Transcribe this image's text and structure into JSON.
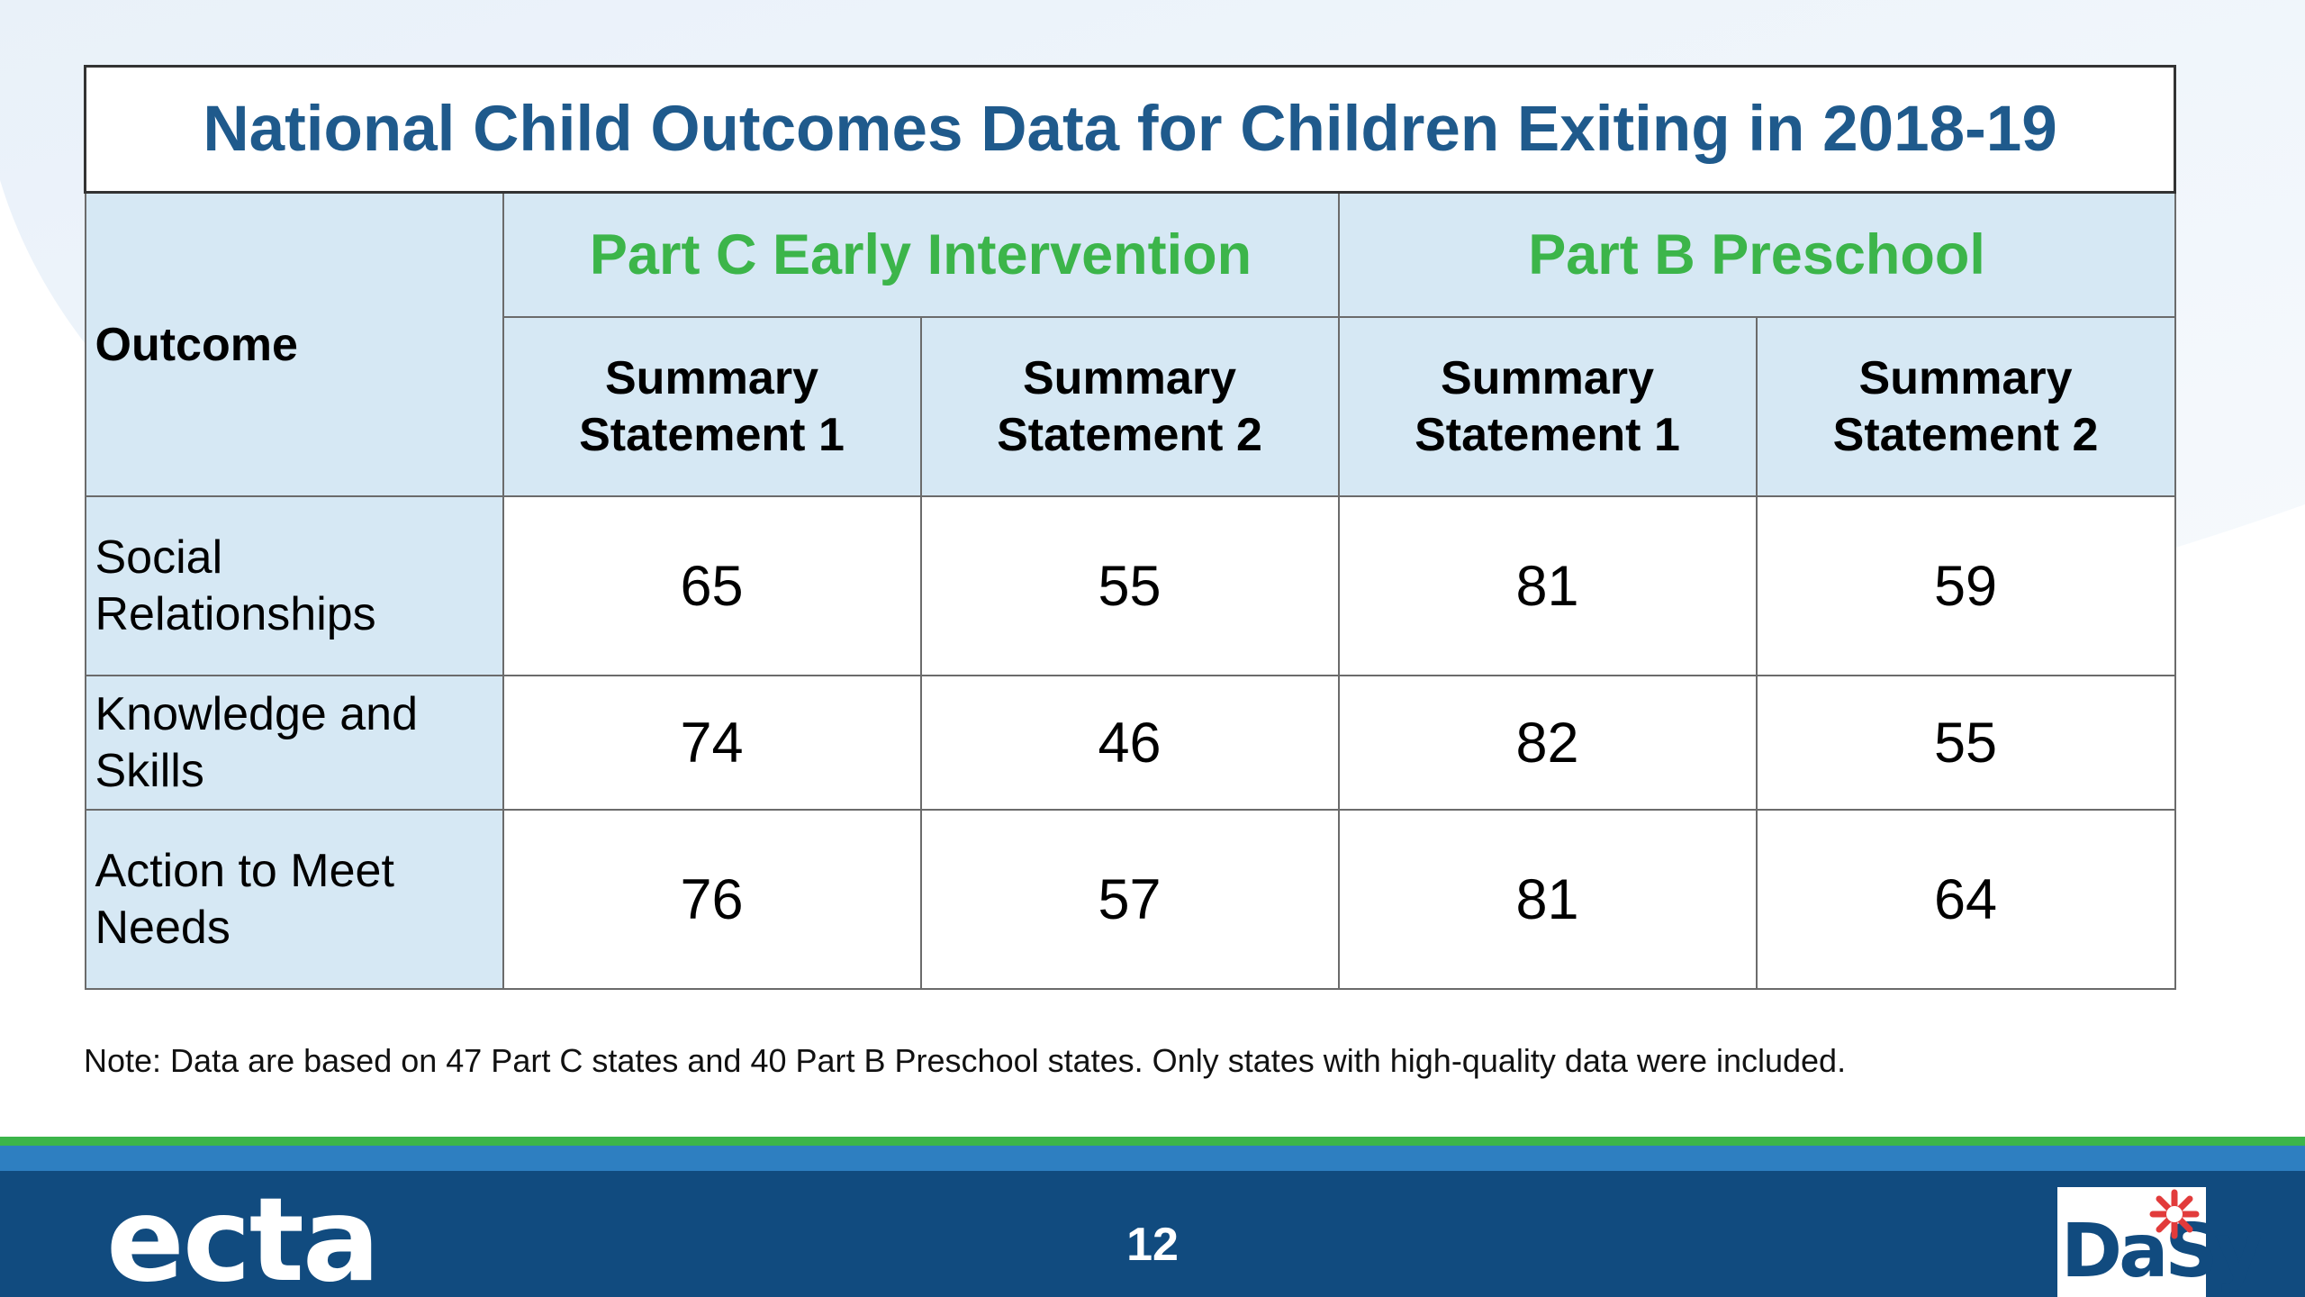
{
  "title": "National Child Outcomes Data for Children Exiting in 2018-19",
  "table": {
    "outcome_header": "Outcome",
    "groups": [
      {
        "label": "Part C Early Intervention",
        "statements": [
          {
            "line1": "Summary",
            "line2": "Statement 1"
          },
          {
            "line1": "Summary",
            "line2": "Statement 2"
          }
        ]
      },
      {
        "label": "Part B Preschool",
        "statements": [
          {
            "line1": "Summary",
            "line2": "Statement 1"
          },
          {
            "line1": "Summary",
            "line2": "Statement 2"
          }
        ]
      }
    ],
    "rows": [
      {
        "line1": "Social",
        "line2": "Relationships",
        "values": [
          "65",
          "55",
          "81",
          "59"
        ]
      },
      {
        "line1": "Knowledge and",
        "line2": "Skills",
        "values": [
          "74",
          "46",
          "82",
          "55"
        ]
      },
      {
        "line1": "Action to Meet",
        "line2": "Needs",
        "values": [
          "76",
          "57",
          "81",
          "64"
        ]
      }
    ]
  },
  "note": "Note: Data are based on 47 Part C states and 40 Part B Preschool states. Only states with high-quality data were included.",
  "footer": {
    "logo_left": "ecta",
    "page_number": "12",
    "logo_right": "DaSy"
  },
  "colors": {
    "title": "#1f5a8c",
    "group_header": "#3cb54a",
    "header_bg": "#d6e8f4",
    "footer_navy": "#114b7f",
    "footer_blue": "#2e7fc1",
    "footer_green": "#3cb54a"
  }
}
